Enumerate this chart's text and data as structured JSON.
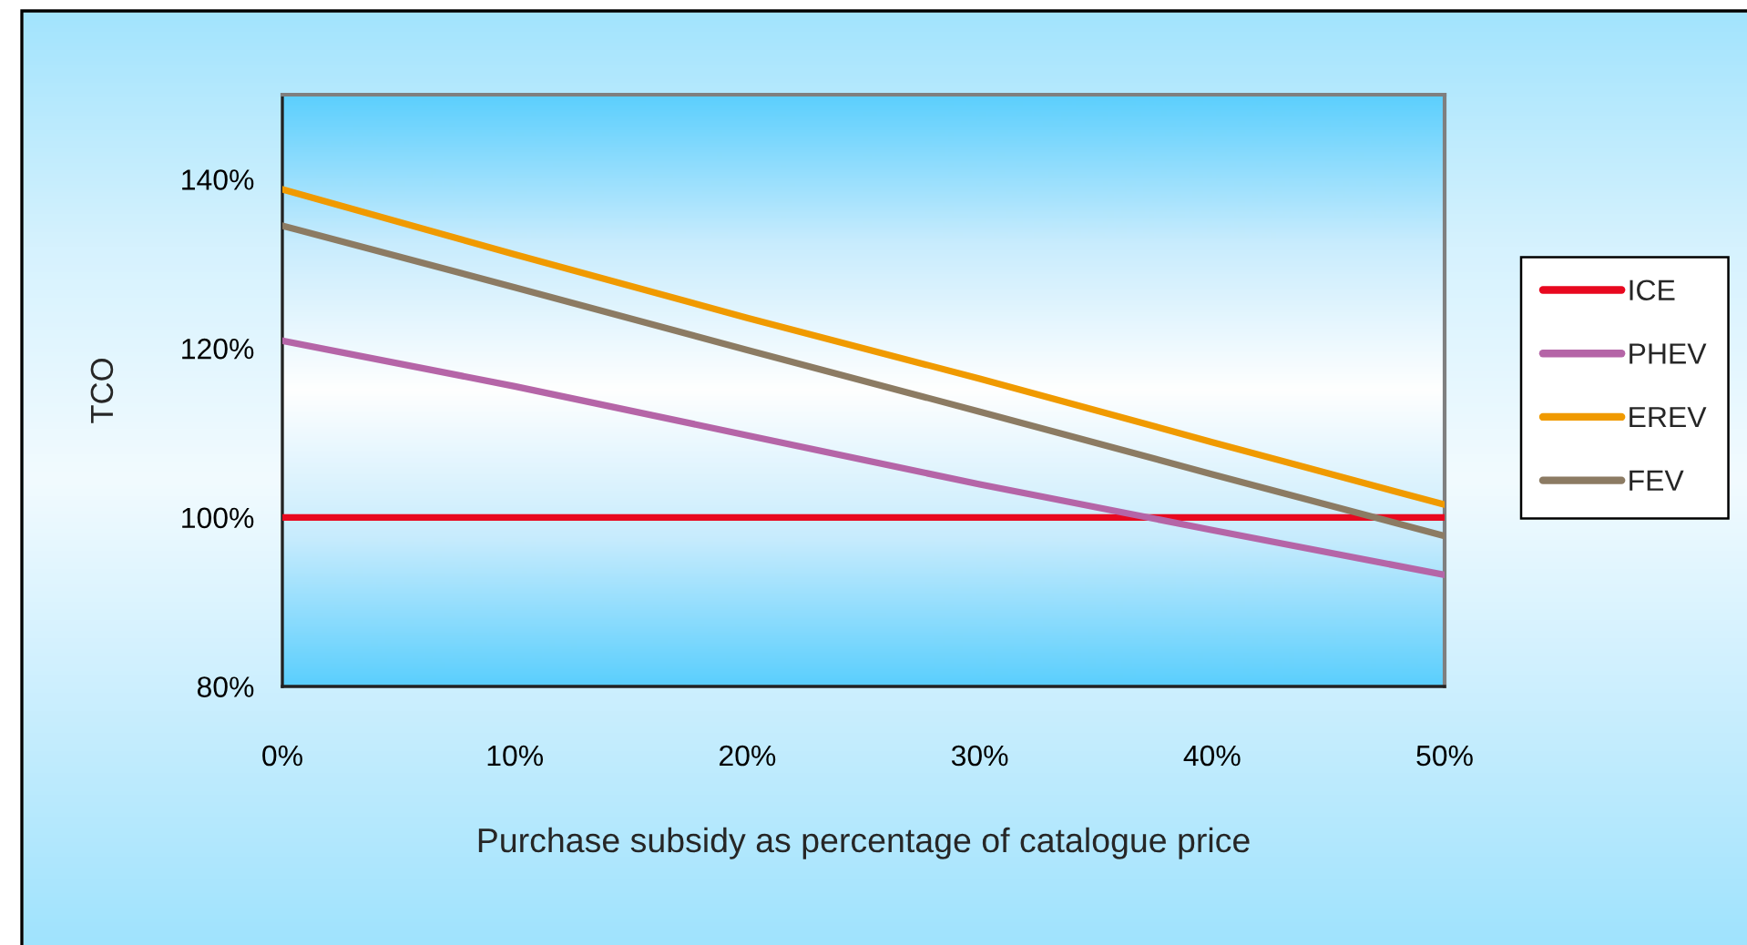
{
  "chart_data": {
    "type": "line",
    "xlabel": "Purchase subsidy as percentage of catalogue price",
    "ylabel": "TCO",
    "x": [
      0,
      10,
      20,
      30,
      40,
      50
    ],
    "series": [
      {
        "name": "ICE",
        "color": "#e8081f",
        "values": [
          100,
          100,
          100,
          100,
          100,
          100
        ]
      },
      {
        "name": "PHEV",
        "color": "#b565a7",
        "values": [
          120.9,
          115.5,
          109.7,
          103.9,
          98.5,
          93.2
        ]
      },
      {
        "name": "EREV",
        "color": "#f09a00",
        "values": [
          138.8,
          131.1,
          123.6,
          116.4,
          108.9,
          101.5
        ]
      },
      {
        "name": "FEV",
        "color": "#8c7b63",
        "values": [
          134.5,
          127.2,
          119.8,
          112.5,
          105.1,
          97.8
        ]
      }
    ],
    "xlim": [
      0,
      50
    ],
    "ylim": [
      80,
      150
    ],
    "xticks": [
      {
        "value": 0,
        "label": "0%"
      },
      {
        "value": 10,
        "label": "10%"
      },
      {
        "value": 20,
        "label": "20%"
      },
      {
        "value": 30,
        "label": "30%"
      },
      {
        "value": 40,
        "label": "40%"
      },
      {
        "value": 50,
        "label": "50%"
      }
    ],
    "yticks": [
      {
        "value": 80,
        "label": "80%"
      },
      {
        "value": 100,
        "label": "100%"
      },
      {
        "value": 120,
        "label": "120%"
      },
      {
        "value": 140,
        "label": "140%"
      }
    ],
    "legend": "right",
    "line_style": "solid"
  }
}
